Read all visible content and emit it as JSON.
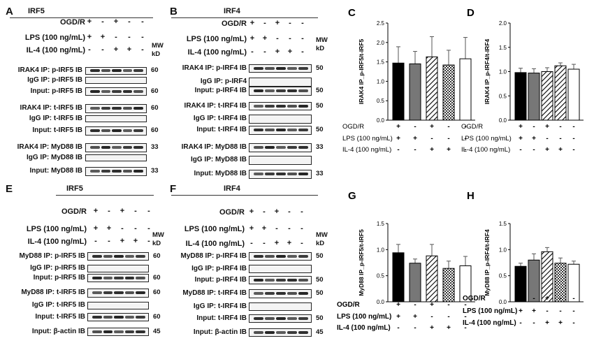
{
  "panels": {
    "A": {
      "label": "A",
      "title": "IRF5",
      "conds": {
        "ogdr": [
          "+",
          "-",
          "+",
          "-",
          "-"
        ],
        "lps": [
          "+",
          "+",
          "-",
          "-",
          "-"
        ],
        "il4": [
          "-",
          "-",
          "+",
          "+",
          "-"
        ]
      },
      "rows": [
        {
          "label": "IRAK4 IP: p-IRF5 IB",
          "mw": "60",
          "bands": true
        },
        {
          "label": "IgG IP: p-IRF5 IB",
          "mw": "",
          "bands": false
        },
        {
          "label": "Input: p-IRF5 IB",
          "mw": "60",
          "bands": true
        },
        {
          "label": "IRAK4 IP: t-IRF5 IB",
          "mw": "60",
          "bands": true
        },
        {
          "label": "IgG IP: t-IRF5 IB",
          "mw": "",
          "bands": false
        },
        {
          "label": "Input: t-IRF5 IB",
          "mw": "60",
          "bands": true
        },
        {
          "label": "IRAK4 IP: MyD88 IB",
          "mw": "33",
          "bands": true
        },
        {
          "label": "IgG IP: MyD88 IB",
          "mw": "",
          "bands": false
        },
        {
          "label": "Input: MyD88 IB",
          "mw": "33",
          "bands": true
        }
      ]
    },
    "B": {
      "label": "B",
      "title": "IRF4",
      "conds": {
        "ogdr": [
          "+",
          "-",
          "+",
          "-",
          "-"
        ],
        "lps": [
          "+",
          "+",
          "-",
          "-",
          "-"
        ],
        "il4": [
          "-",
          "-",
          "+",
          "+",
          "-"
        ]
      },
      "rows": [
        {
          "label": "IRAK4  IP: p-IRF4 IB",
          "mw": "50",
          "bands": true
        },
        {
          "label": "IgG  IP:  p-IRF4",
          "mw": "",
          "bands": false
        },
        {
          "label": "Input: p-IRF4 IB",
          "mw": "50",
          "bands": true
        },
        {
          "label": "IRAK4  IP: t-IRF4 IB",
          "mw": "50",
          "bands": true
        },
        {
          "label": "IgG  IP: t-IRF4 IB",
          "mw": "",
          "bands": false
        },
        {
          "label": "Input: t-IRF4 IB",
          "mw": "50",
          "bands": true
        },
        {
          "label": "IRAK4  IP: MyD88 IB",
          "mw": "33",
          "bands": true
        },
        {
          "label": "IgG IP: MyD88 IB",
          "mw": "",
          "bands": false
        },
        {
          "label": "Input: MyD88 IB",
          "mw": "33",
          "bands": true
        }
      ]
    },
    "E": {
      "label": "E",
      "title": "IRF5",
      "conds": {
        "ogdr": [
          "+",
          "-",
          "+",
          "-",
          "-"
        ],
        "lps": [
          "+",
          "+",
          "-",
          "-",
          "-"
        ],
        "il4": [
          "-",
          "-",
          "+",
          "+",
          "-"
        ]
      },
      "rows": [
        {
          "label": "MyD88 IP: p-IRF5 IB",
          "mw": "60",
          "bands": true
        },
        {
          "label": "IgG IP: p-IRF5 IB",
          "mw": "",
          "bands": false
        },
        {
          "label": "Input: p-IRF5 IB",
          "mw": "60",
          "bands": true
        },
        {
          "label": "MyD88 IP: t-IRF5 IB",
          "mw": "60",
          "bands": true
        },
        {
          "label": "IgG IP: t-IRF5 IB",
          "mw": "",
          "bands": false
        },
        {
          "label": "Input: t-IRF5 IB",
          "mw": "60",
          "bands": true
        },
        {
          "label": "Input: β-actin IB",
          "mw": "45",
          "bands": true
        }
      ]
    },
    "F": {
      "label": "F",
      "title": "IRF4",
      "conds": {
        "ogdr": [
          "+",
          "-",
          "+",
          "-",
          "-"
        ],
        "lps": [
          "+",
          "+",
          "-",
          "-",
          "-"
        ],
        "il4": [
          "-",
          "-",
          "+",
          "+",
          "-"
        ]
      },
      "rows": [
        {
          "label": "MyD88 IP: p-IRF4 IB",
          "mw": "50",
          "bands": true
        },
        {
          "label": "IgG IP: p-IRF4 IB",
          "mw": "",
          "bands": false
        },
        {
          "label": "Input: p-IRF4 IB",
          "mw": "50",
          "bands": true
        },
        {
          "label": "MyD88 IP: t-IRF4 IB",
          "mw": "50",
          "bands": true
        },
        {
          "label": "IgG IP: t-IRF4 IB",
          "mw": "",
          "bands": false
        },
        {
          "label": "Input: t-IRF4 IB",
          "mw": "50",
          "bands": true
        },
        {
          "label": "Input: β-actin IB",
          "mw": "45",
          "bands": true
        }
      ]
    }
  },
  "condition_labels": {
    "ogdr": "OGD/R",
    "lps": "LPS (100 ng/mL)",
    "il4": "IL-4 (100 ng/mL)",
    "mw": "MW",
    "kd": "kD"
  },
  "chart_data": [
    {
      "panel": "C",
      "type": "bar",
      "ylabel": "IRAK4 IP_p-IRF5/t-IRF5",
      "ylim": [
        0,
        2.5
      ],
      "yticks": [
        0.0,
        0.5,
        1.0,
        1.5,
        2.0,
        2.5
      ],
      "values": [
        1.47,
        1.45,
        1.63,
        1.42,
        1.58
      ],
      "errors": [
        0.42,
        0.32,
        0.52,
        0.38,
        0.55
      ],
      "fills": [
        "#000000",
        "#777777",
        "hatch",
        "check",
        "#ffffff"
      ],
      "conditions": {
        "ogdr": [
          "+",
          "-",
          "+",
          "-",
          "-"
        ],
        "lps": [
          "+",
          "+",
          "-",
          "-",
          "-"
        ],
        "il4": [
          "-",
          "-",
          "+",
          "+",
          "-"
        ]
      }
    },
    {
      "panel": "D",
      "type": "bar",
      "ylabel": "IRAK4 IP_p-IRF4/t-IRF4",
      "ylim": [
        0,
        2.0
      ],
      "yticks": [
        0.0,
        0.5,
        1.0,
        1.5,
        2.0
      ],
      "values": [
        0.98,
        0.97,
        1.0,
        1.12,
        1.05
      ],
      "errors": [
        0.09,
        0.09,
        0.08,
        0.06,
        0.1
      ],
      "fills": [
        "#000000",
        "#777777",
        "hatch",
        "hatch",
        "#ffffff"
      ],
      "conditions": {
        "ogdr": [
          "+",
          "-",
          "+",
          "-",
          "-"
        ],
        "lps": [
          "+",
          "+",
          "-",
          "-",
          "-"
        ],
        "il4": [
          "-",
          "-",
          "+",
          "+",
          "-"
        ]
      }
    },
    {
      "panel": "G",
      "type": "bar",
      "ylabel": "MyD88 IP_p-IRF5/t-IRF5",
      "ylim": [
        0,
        1.5
      ],
      "yticks": [
        0.0,
        0.5,
        1.0,
        1.5
      ],
      "values": [
        0.94,
        0.74,
        0.88,
        0.64,
        0.69
      ],
      "errors": [
        0.16,
        0.08,
        0.22,
        0.14,
        0.18
      ],
      "fills": [
        "#000000",
        "#777777",
        "hatch",
        "check",
        "#ffffff"
      ],
      "conditions": {
        "ogdr": [
          "+",
          "-",
          "+",
          "-",
          "-"
        ],
        "lps": [
          "+",
          "+",
          "-",
          "-",
          "-"
        ],
        "il4": [
          "-",
          "-",
          "+",
          "+",
          "-"
        ]
      }
    },
    {
      "panel": "H",
      "type": "bar",
      "ylabel": "MyD88 IP_p-IRF4/t-IRF4",
      "ylim": [
        0,
        1.5
      ],
      "yticks": [
        0.0,
        0.5,
        1.0,
        1.5
      ],
      "values": [
        0.68,
        0.8,
        0.96,
        0.74,
        0.72
      ],
      "errors": [
        0.06,
        0.12,
        0.08,
        0.1,
        0.06
      ],
      "fills": [
        "#000000",
        "#777777",
        "hatch",
        "check",
        "#ffffff"
      ],
      "conditions": {
        "ogdr": [
          "+",
          "-",
          "+",
          "-",
          "-"
        ],
        "lps": [
          "+",
          "+",
          "-",
          "-",
          "-"
        ],
        "il4": [
          "-",
          "-",
          "+",
          "+",
          "-"
        ]
      }
    }
  ]
}
